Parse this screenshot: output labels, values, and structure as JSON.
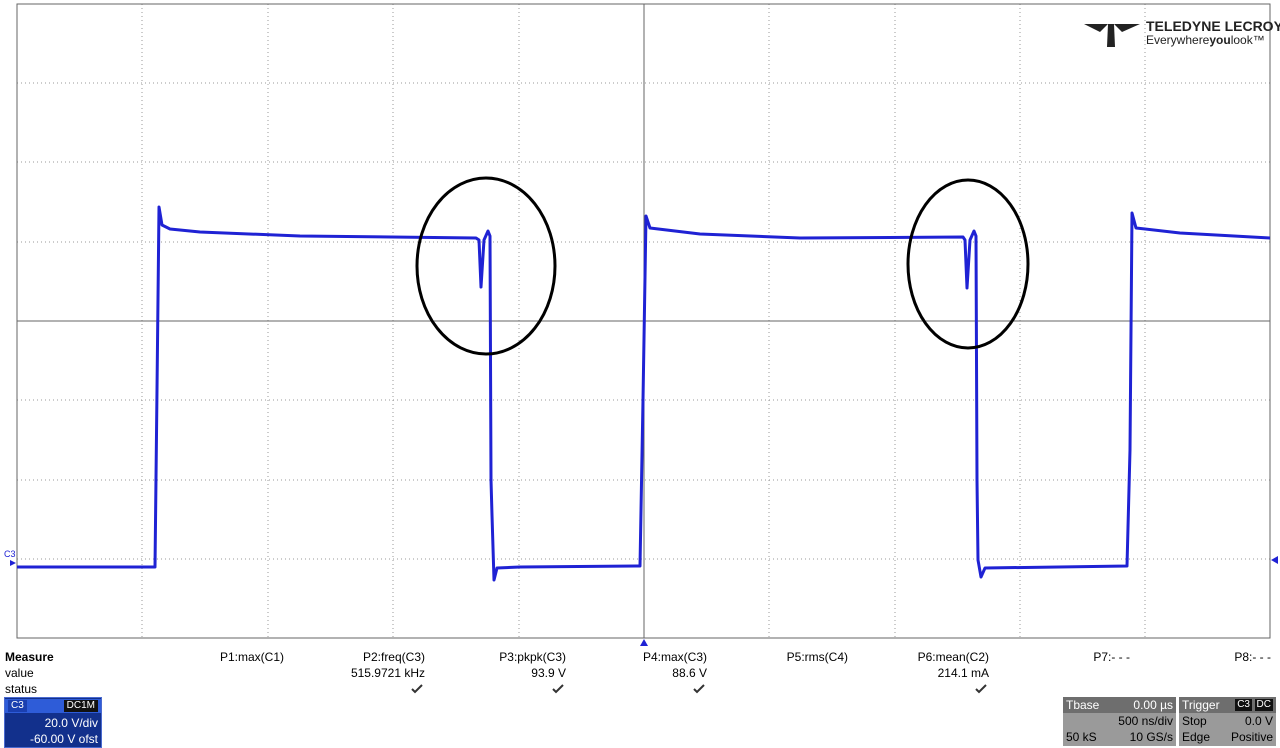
{
  "logo": {
    "brand": "TELEDYNE LECROY",
    "tagline": [
      "Everywhere",
      "you",
      "look™"
    ]
  },
  "trace_label": "C3",
  "measure": {
    "title": "Measure",
    "row_labels": [
      "value",
      "status"
    ],
    "params": [
      {
        "name": "P1:max(C1)"
      },
      {
        "name": "P2:freq(C3)",
        "value": "515.9721 kHz"
      },
      {
        "name": "P3:pkpk(C3)",
        "value": "93.9 V"
      },
      {
        "name": "P4:max(C3)",
        "value": "88.6 V"
      },
      {
        "name": "P5:rms(C4)"
      },
      {
        "name": "P6:mean(C2)",
        "value": "214.1 mA"
      },
      {
        "name": "P7:- - -"
      },
      {
        "name": "P8:- - -"
      }
    ]
  },
  "channel": {
    "name": "C3",
    "coupling": "DC1M",
    "scale": "20.0 V/div",
    "offset": "-60.00 V ofst"
  },
  "timebase": {
    "title": "Tbase",
    "delay": "0.00 µs",
    "scale": "500 ns/div",
    "samples": "50 kS",
    "rate": "10 GS/s"
  },
  "trigger": {
    "title": "Trigger",
    "source": "C3",
    "coupling": "DC",
    "mode": "Stop",
    "level": "0.0 V",
    "type": "Edge",
    "slope": "Positive"
  }
}
